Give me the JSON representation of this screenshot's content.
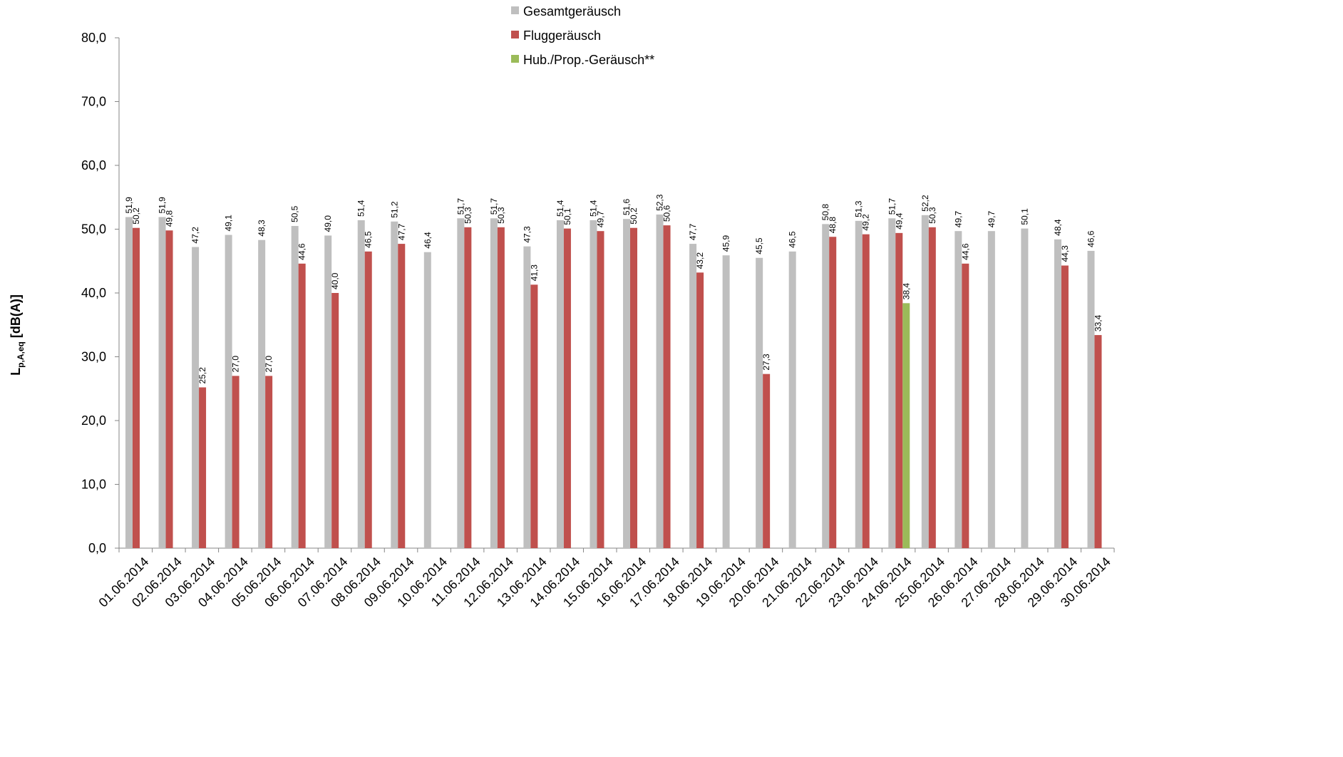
{
  "chart_data": {
    "type": "bar",
    "ylabel": {
      "main": "L",
      "sub": "p,A,eq",
      "unit": " [dB(A)]"
    },
    "xlabel": "",
    "ylim": [
      0,
      80
    ],
    "y_ticks": [
      "0,0",
      "10,0",
      "20,0",
      "30,0",
      "40,0",
      "50,0",
      "60,0",
      "70,0",
      "80,0"
    ],
    "grid": false,
    "legend_position": "top-center",
    "categories": [
      "01.06.2014",
      "02.06.2014",
      "03.06.2014",
      "04.06.2014",
      "05.06.2014",
      "06.06.2014",
      "07.06.2014",
      "08.06.2014",
      "09.06.2014",
      "10.06.2014",
      "11.06.2014",
      "12.06.2014",
      "13.06.2014",
      "14.06.2014",
      "15.06.2014",
      "16.06.2014",
      "17.06.2014",
      "18.06.2014",
      "19.06.2014",
      "20.06.2014",
      "21.06.2014",
      "22.06.2014",
      "23.06.2014",
      "24.06.2014",
      "25.06.2014",
      "26.06.2014",
      "27.06.2014",
      "28.06.2014",
      "29.06.2014",
      "30.06.2014"
    ],
    "series": [
      {
        "name": "Gesamtgeräusch",
        "color": "#bfbfbf",
        "values": [
          51.9,
          51.9,
          47.2,
          49.1,
          48.3,
          50.5,
          49.0,
          51.4,
          51.2,
          46.4,
          51.7,
          51.7,
          47.3,
          51.4,
          51.4,
          51.6,
          52.3,
          47.7,
          45.9,
          45.5,
          46.5,
          50.8,
          51.3,
          51.7,
          52.2,
          49.7,
          49.7,
          50.1,
          48.4,
          46.6
        ],
        "labels": [
          "51,9",
          "51,9",
          "47,2",
          "49,1",
          "48,3",
          "50,5",
          "49,0",
          "51,4",
          "51,2",
          "46,4",
          "51,7",
          "51,7",
          "47,3",
          "51,4",
          "51,4",
          "51,6",
          "52,3",
          "47,7",
          "45,9",
          "45,5",
          "46,5",
          "50,8",
          "51,3",
          "51,7",
          "52,2",
          "49,7",
          "49,7",
          "50,1",
          "48,4",
          "46,6"
        ]
      },
      {
        "name": "Fluggeräusch",
        "color": "#c0504d",
        "values": [
          50.2,
          49.8,
          25.2,
          27.0,
          27.0,
          44.6,
          40.0,
          46.5,
          47.7,
          null,
          50.3,
          50.3,
          41.3,
          50.1,
          49.7,
          50.2,
          50.6,
          43.2,
          null,
          27.3,
          null,
          48.8,
          49.2,
          49.4,
          50.3,
          44.6,
          null,
          null,
          44.3,
          33.4
        ],
        "labels": [
          "50,2",
          "49,8",
          "25,2",
          "27,0",
          "27,0",
          "44,6",
          "40,0",
          "46,5",
          "47,7",
          null,
          "50,3",
          "50,3",
          "41,3",
          "50,1",
          "49,7",
          "50,2",
          "50,6",
          "43,2",
          null,
          "27,3",
          null,
          "48,8",
          "49,2",
          "49,4",
          "50,3",
          "44,6",
          null,
          null,
          "44,3",
          "33,4"
        ]
      },
      {
        "name": "Hub./Prop.-Geräusch**",
        "color": "#9bbb59",
        "values": [
          null,
          null,
          null,
          null,
          null,
          null,
          null,
          null,
          null,
          null,
          null,
          null,
          null,
          null,
          null,
          null,
          null,
          null,
          null,
          null,
          null,
          null,
          null,
          38.4,
          null,
          null,
          null,
          null,
          null,
          null
        ],
        "labels": [
          null,
          null,
          null,
          null,
          null,
          null,
          null,
          null,
          null,
          null,
          null,
          null,
          null,
          null,
          null,
          null,
          null,
          null,
          null,
          null,
          null,
          null,
          null,
          "38,4",
          null,
          null,
          null,
          null,
          null,
          null
        ]
      }
    ]
  }
}
